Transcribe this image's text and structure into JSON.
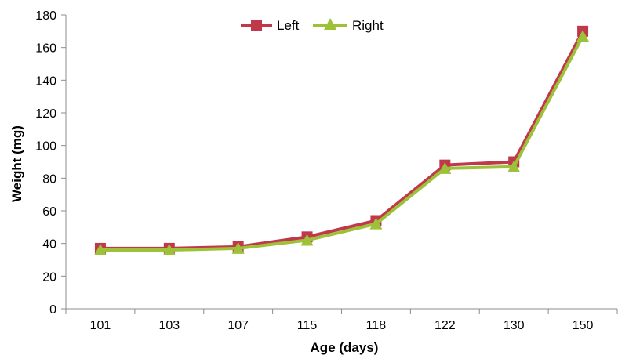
{
  "chart_data": {
    "type": "line",
    "title": "",
    "xlabel": "Age (days)",
    "ylabel": "Weight (mg)",
    "categories": [
      "101",
      "103",
      "107",
      "115",
      "118",
      "122",
      "130",
      "150"
    ],
    "ylim": [
      0,
      180
    ],
    "yticks": [
      0,
      20,
      40,
      60,
      80,
      100,
      120,
      140,
      160,
      180
    ],
    "grid": false,
    "legend_position": "top-center",
    "series": [
      {
        "name": "Left",
        "marker": "square",
        "color": "#C0394B",
        "values": [
          37,
          37,
          38,
          44,
          54,
          88,
          90,
          170
        ]
      },
      {
        "name": "Right",
        "marker": "triangle",
        "color": "#9DC23A",
        "values": [
          36,
          36,
          37,
          42,
          52,
          86,
          87,
          167
        ]
      }
    ]
  }
}
